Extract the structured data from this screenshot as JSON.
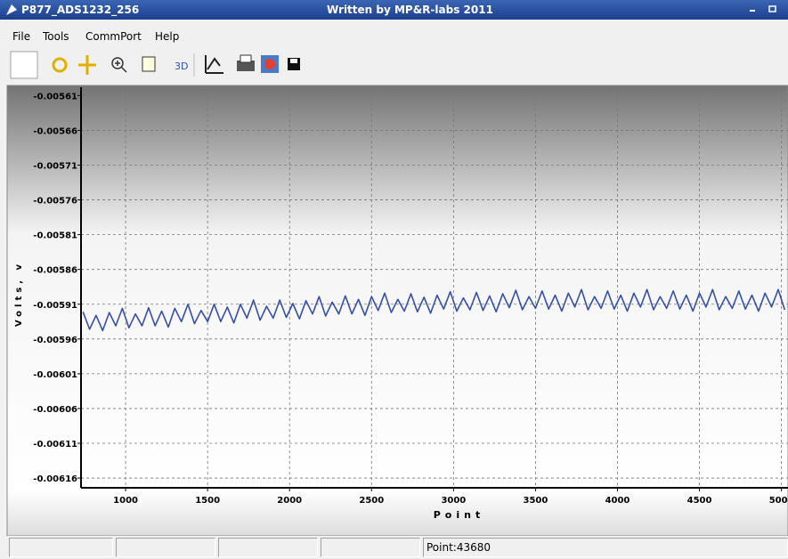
{
  "window": {
    "title": "P877_ADS1232_256",
    "subtitle": "Written by MP&R-labs 2011"
  },
  "menu": [
    "File",
    "Tools",
    "CommPort",
    "Help"
  ],
  "toolbar": {
    "label_3d": "3D"
  },
  "status_bar": {
    "point": "Point:43680"
  },
  "chart_data": {
    "type": "line",
    "x_label": "Point",
    "y_label": "Volts, v",
    "color": "#3550a8",
    "grid": true,
    "xlim": [
      728,
      5040
    ],
    "ylim": [
      -0.006174,
      -0.005598
    ],
    "xticks": [
      1000,
      1500,
      2000,
      2500,
      3000,
      3500,
      4000,
      4500,
      5000
    ],
    "yticks": [
      -0.00561,
      -0.00566,
      -0.00571,
      -0.00576,
      -0.00581,
      -0.00586,
      -0.00591,
      -0.00596,
      -0.00601,
      -0.00606,
      -0.00611,
      -0.00616
    ],
    "x": [
      740,
      780,
      820,
      860,
      900,
      940,
      980,
      1020,
      1060,
      1100,
      1140,
      1180,
      1220,
      1260,
      1300,
      1340,
      1380,
      1420,
      1460,
      1500,
      1540,
      1580,
      1620,
      1660,
      1700,
      1740,
      1780,
      1820,
      1860,
      1900,
      1940,
      1980,
      2020,
      2060,
      2100,
      2140,
      2180,
      2220,
      2260,
      2300,
      2340,
      2380,
      2420,
      2460,
      2500,
      2540,
      2580,
      2620,
      2660,
      2700,
      2740,
      2780,
      2820,
      2860,
      2900,
      2940,
      2980,
      3020,
      3060,
      3100,
      3140,
      3180,
      3220,
      3260,
      3300,
      3340,
      3380,
      3420,
      3460,
      3500,
      3540,
      3580,
      3620,
      3660,
      3700,
      3740,
      3780,
      3820,
      3860,
      3900,
      3940,
      3980,
      4020,
      4060,
      4100,
      4140,
      4180,
      4220,
      4260,
      4300,
      4340,
      4380,
      4420,
      4460,
      4500,
      4540,
      4580,
      4620,
      4660,
      4700,
      4740,
      4780,
      4820,
      4860,
      4900,
      4940,
      4980,
      5020
    ],
    "values": [
      -0.005921,
      -0.005946,
      -0.005926,
      -0.005948,
      -0.005922,
      -0.005941,
      -0.005916,
      -0.005944,
      -0.005924,
      -0.005941,
      -0.005915,
      -0.005941,
      -0.00592,
      -0.005943,
      -0.005916,
      -0.005935,
      -0.00591,
      -0.005938,
      -0.005919,
      -0.005935,
      -0.00591,
      -0.005935,
      -0.005914,
      -0.005937,
      -0.00591,
      -0.00593,
      -0.005904,
      -0.005933,
      -0.005913,
      -0.00593,
      -0.005904,
      -0.005929,
      -0.005909,
      -0.005931,
      -0.005905,
      -0.005924,
      -0.005899,
      -0.005927,
      -0.005907,
      -0.005924,
      -0.005898,
      -0.005924,
      -0.005903,
      -0.005926,
      -0.005899,
      -0.005919,
      -0.005894,
      -0.005922,
      -0.005903,
      -0.00592,
      -0.005895,
      -0.005921,
      -0.0059,
      -0.005923,
      -0.005897,
      -0.005917,
      -0.005892,
      -0.00592,
      -0.005901,
      -0.005918,
      -0.005893,
      -0.005919,
      -0.005898,
      -0.005921,
      -0.005895,
      -0.005915,
      -0.00589,
      -0.005918,
      -0.005899,
      -0.005916,
      -0.005891,
      -0.005917,
      -0.005897,
      -0.00592,
      -0.005894,
      -0.005914,
      -0.005889,
      -0.005918,
      -0.005899,
      -0.005916,
      -0.005891,
      -0.005917,
      -0.005897,
      -0.00592,
      -0.005894,
      -0.005914,
      -0.005889,
      -0.005918,
      -0.005899,
      -0.005916,
      -0.005891,
      -0.005917,
      -0.005897,
      -0.00592,
      -0.005894,
      -0.005914,
      -0.005889,
      -0.005918,
      -0.005899,
      -0.005916,
      -0.005891,
      -0.005917,
      -0.005897,
      -0.00592,
      -0.005894,
      -0.005914,
      -0.005889,
      -0.005918
    ]
  }
}
